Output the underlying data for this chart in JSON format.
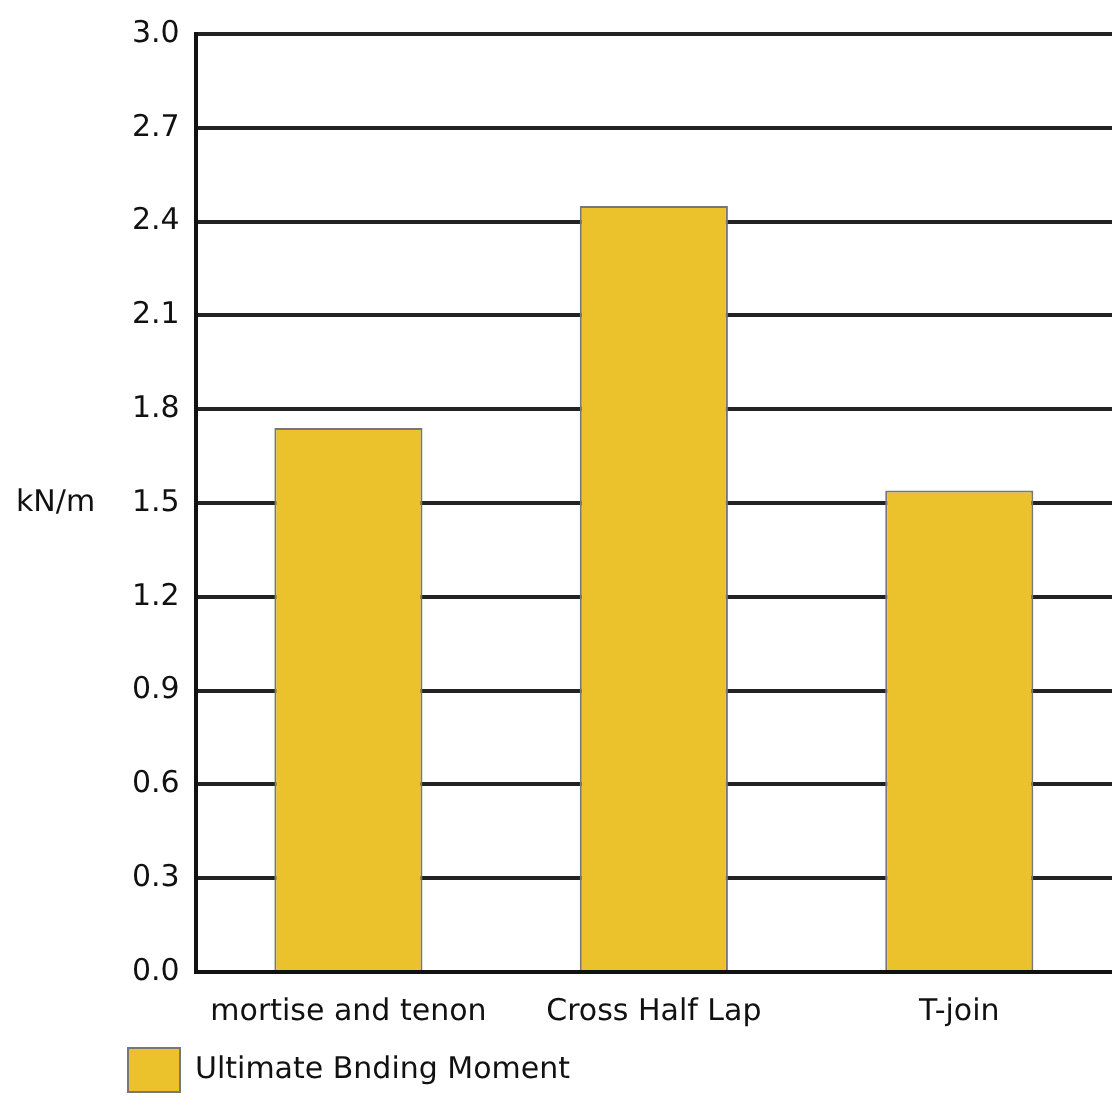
{
  "chart_data": {
    "type": "bar",
    "ylabel": "kN/m",
    "categories": [
      "mortise and tenon",
      "Cross Half Lap",
      "T-join"
    ],
    "series": [
      {
        "name": "Ultimate Bnding Moment",
        "color": "#ecc22c",
        "values": [
          1.74,
          2.45,
          1.54
        ]
      }
    ],
    "ylim": [
      0,
      3.0
    ],
    "yticks": [
      {
        "value": 0,
        "label": "0.0"
      },
      {
        "value": 0.3,
        "label": "0.3"
      },
      {
        "value": 0.6,
        "label": "0.6"
      },
      {
        "value": 0.9,
        "label": "0.9"
      },
      {
        "value": 1.2,
        "label": "1.2"
      },
      {
        "value": 1.5,
        "label": "1.5"
      },
      {
        "value": 1.8,
        "label": "1.8"
      },
      {
        "value": 2.1,
        "label": "2.1"
      },
      {
        "value": 2.4,
        "label": "2.4"
      },
      {
        "value": 2.7,
        "label": "2.7"
      },
      {
        "value": 3.0,
        "label": "3.0"
      }
    ],
    "grid": "y",
    "legend": "bottom left"
  }
}
